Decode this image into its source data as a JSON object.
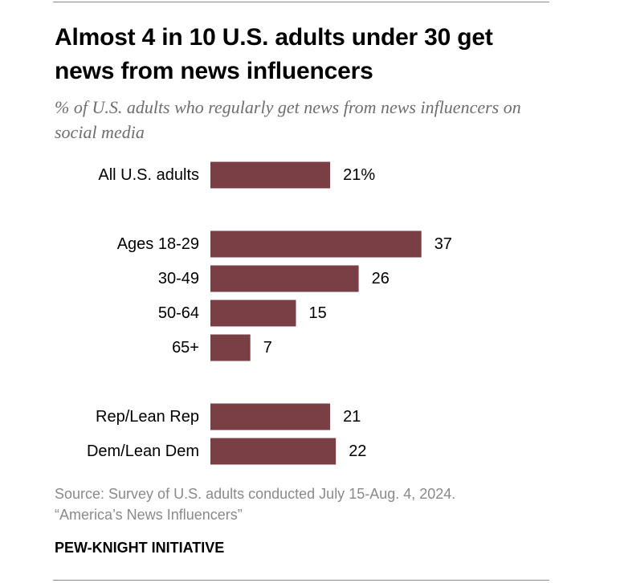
{
  "header": {
    "title": "Almost 4 in 10 U.S. adults under 30 get news from news influencers",
    "subtitle": "% of U.S. adults who regularly get news from news influencers on social media"
  },
  "chart_data": {
    "type": "bar",
    "orientation": "horizontal",
    "title": "Almost 4 in 10 U.S. adults under 30 get news from news influencers",
    "subtitle": "% of U.S. adults who regularly get news from news influencers on social media",
    "categories": [
      "All U.S. adults",
      "Ages 18-29",
      "30-49",
      "50-64",
      "65+",
      "Rep/Lean Rep",
      "Dem/Lean Dem"
    ],
    "groups": [
      [
        "All U.S. adults"
      ],
      [
        "Ages 18-29",
        "30-49",
        "50-64",
        "65+"
      ],
      [
        "Rep/Lean Rep",
        "Dem/Lean Dem"
      ]
    ],
    "values": [
      21,
      37,
      26,
      15,
      7,
      21,
      22
    ],
    "value_labels": [
      "21%",
      "37",
      "26",
      "15",
      "7",
      "21",
      "22"
    ],
    "unit": "%",
    "xlim": [
      0,
      100
    ],
    "grid": false,
    "legend": "none",
    "bar_color": "#7a3e45"
  },
  "footer": {
    "source_line1": "Source: Survey of U.S. adults conducted July 15-Aug. 4, 2024.",
    "source_line2": "“America’s News Influencers”",
    "brand": "PEW-KNIGHT INITIATIVE"
  }
}
